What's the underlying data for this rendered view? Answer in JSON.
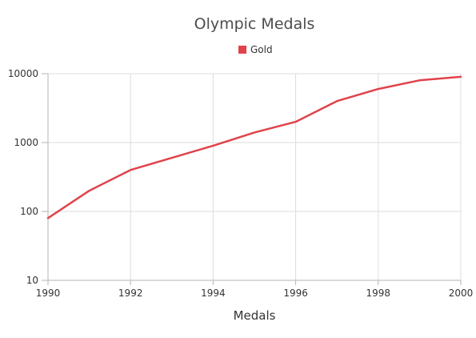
{
  "chart_data": {
    "type": "line",
    "title": "Olympic Medals",
    "xlabel": "Medals",
    "ylabel": "",
    "x": [
      1990,
      1991,
      1992,
      1993,
      1994,
      1995,
      1996,
      1997,
      1998,
      1999,
      2000
    ],
    "series": [
      {
        "name": "Gold",
        "color": "#e0434b",
        "values": [
          80,
          200,
          400,
          600,
          900,
          1400,
          2000,
          4000,
          6000,
          8000,
          9000
        ]
      }
    ],
    "xlim": [
      1990,
      2000
    ],
    "ylim": [
      10,
      10000
    ],
    "y_scale": "log",
    "x_ticks": [
      "1990",
      "1992",
      "1994",
      "1996",
      "1998",
      "2000"
    ],
    "y_ticks": [
      "10",
      "100",
      "1000",
      "10000"
    ],
    "grid": true,
    "legend_position": "top-center"
  }
}
